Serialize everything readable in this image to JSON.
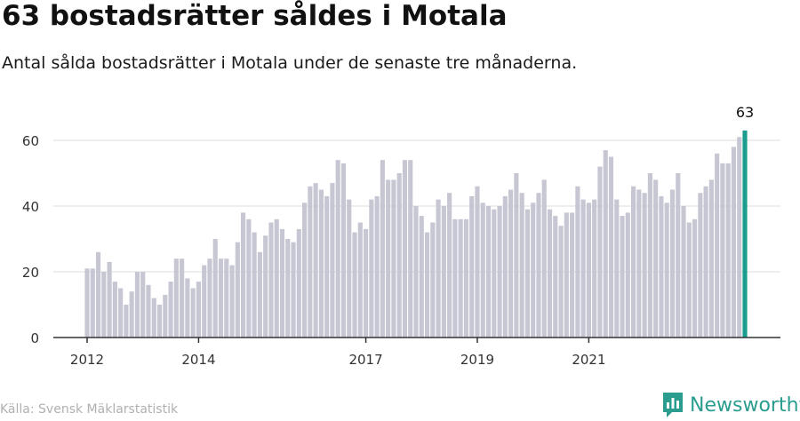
{
  "header": {
    "title": "63 bostadsrätter såldes i Motala",
    "subtitle": "Antal sålda bostadsrätter i Motala under de senaste tre månaderna."
  },
  "footer": {
    "source": "Källa: Svensk Mäklarstatistik",
    "brand": "Newsworthy",
    "brand_color": "#2a9d8f"
  },
  "chart_data": {
    "type": "bar",
    "title": "63 bostadsrätter såldes i Motala",
    "subtitle": "Antal sålda bostadsrätter i Motala under de senaste tre månaderna.",
    "xlabel": "",
    "ylabel": "",
    "ylim": [
      0,
      70
    ],
    "yticks": [
      0,
      20,
      40,
      60
    ],
    "grid": true,
    "x_tick_labels": [
      {
        "label": "2012",
        "index": 0
      },
      {
        "label": "2014",
        "index": 20
      },
      {
        "label": "2017",
        "index": 50
      },
      {
        "label": "2019",
        "index": 70
      },
      {
        "label": "2021",
        "index": 90
      }
    ],
    "highlight_label": "63",
    "bar_color": "#c7c7d4",
    "highlight_color": "#1a9c8e",
    "values": [
      21,
      21,
      26,
      20,
      23,
      17,
      15,
      10,
      14,
      20,
      20,
      16,
      12,
      10,
      13,
      17,
      24,
      24,
      18,
      15,
      17,
      22,
      24,
      30,
      24,
      24,
      22,
      29,
      38,
      36,
      32,
      26,
      31,
      35,
      36,
      33,
      30,
      29,
      33,
      41,
      46,
      47,
      45,
      43,
      47,
      54,
      53,
      42,
      32,
      35,
      33,
      42,
      43,
      54,
      48,
      48,
      50,
      54,
      54,
      40,
      37,
      32,
      35,
      42,
      40,
      44,
      36,
      36,
      36,
      43,
      46,
      41,
      40,
      39,
      40,
      43,
      45,
      50,
      44,
      39,
      41,
      44,
      48,
      39,
      37,
      34,
      38,
      38,
      46,
      42,
      41,
      42,
      52,
      57,
      55,
      42,
      37,
      38,
      46,
      45,
      44,
      50,
      48,
      43,
      41,
      45,
      50,
      40,
      35,
      36,
      44,
      46,
      48,
      56,
      53,
      53,
      58,
      61,
      63
    ]
  }
}
